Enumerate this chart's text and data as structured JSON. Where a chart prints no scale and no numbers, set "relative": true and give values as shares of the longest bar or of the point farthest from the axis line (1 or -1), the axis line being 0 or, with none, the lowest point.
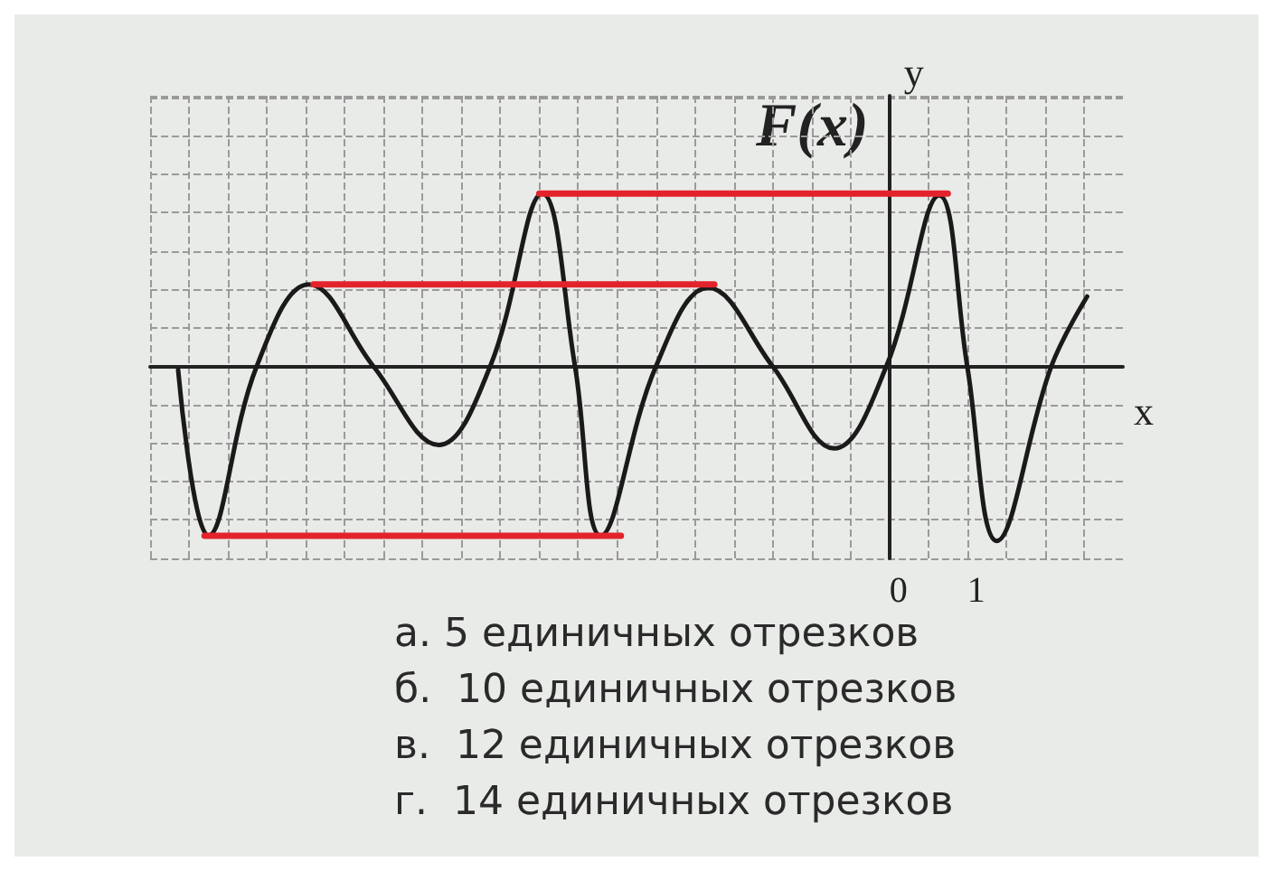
{
  "chart_data": {
    "type": "line",
    "xlabel": "x",
    "ylabel": "y",
    "relative": true,
    "grid": true,
    "marker": "none",
    "line_style": "solid",
    "xlim": [
      -9.5,
      3
    ],
    "xticks": [
      {
        "value": -9.5,
        "label": null
      },
      {
        "value": -9,
        "label": null
      },
      {
        "value": -8.5,
        "label": null
      },
      {
        "value": -8,
        "label": null
      },
      {
        "value": -7.5,
        "label": null
      },
      {
        "value": -7,
        "label": null
      },
      {
        "value": -6.5,
        "label": null
      },
      {
        "value": -6,
        "label": null
      },
      {
        "value": -5.5,
        "label": null
      },
      {
        "value": -5,
        "label": null
      },
      {
        "value": -4.5,
        "label": null
      },
      {
        "value": -4,
        "label": null
      },
      {
        "value": -3.5,
        "label": null
      },
      {
        "value": -3,
        "label": null
      },
      {
        "value": -2.5,
        "label": null
      },
      {
        "value": -2,
        "label": null
      },
      {
        "value": -1.5,
        "label": null
      },
      {
        "value": -1,
        "label": null
      },
      {
        "value": -0.5,
        "label": null
      },
      0,
      {
        "value": 0.5,
        "label": null
      },
      1,
      {
        "value": 1.5,
        "label": null
      },
      {
        "value": 2,
        "label": null
      },
      {
        "value": 2.5,
        "label": null
      }
    ],
    "series": [
      {
        "color": "#1a1a1a",
        "x": [
          -9.14,
          -8.75,
          -8.13,
          -7.46,
          -6.63,
          -5.79,
          -5.13,
          -4.46,
          -4.04,
          -3.71,
          -3.0,
          -2.33,
          -1.5,
          -0.71,
          -0.04,
          0.64,
          1.0,
          1.38,
          2.08,
          2.54
        ],
        "values": [
          -0.02,
          -0.97,
          0,
          0.47,
          0,
          -0.45,
          0,
          0.99,
          0,
          -0.97,
          0,
          0.45,
          0,
          -0.47,
          0,
          0.98,
          0,
          -1,
          0,
          0.4
        ]
      },
      {
        "color": "#e3232c",
        "x": [
          -4.5,
          0.75
        ],
        "values": [
          0.99,
          0.99
        ]
      },
      {
        "color": "#e3232c",
        "x": [
          -7.4,
          -2.25
        ],
        "values": [
          0.47,
          0.47
        ]
      },
      {
        "color": "#e3232c",
        "x": [
          -8.8,
          -3.45
        ],
        "values": [
          -0.97,
          -0.97
        ]
      }
    ],
    "annotations": [
      "F(x)",
      "а. 5 единичных отрезков",
      "б.  10 единичных отрезков",
      "в.  12 единичных отрезков",
      "г.  14 единичных отрезков"
    ]
  }
}
